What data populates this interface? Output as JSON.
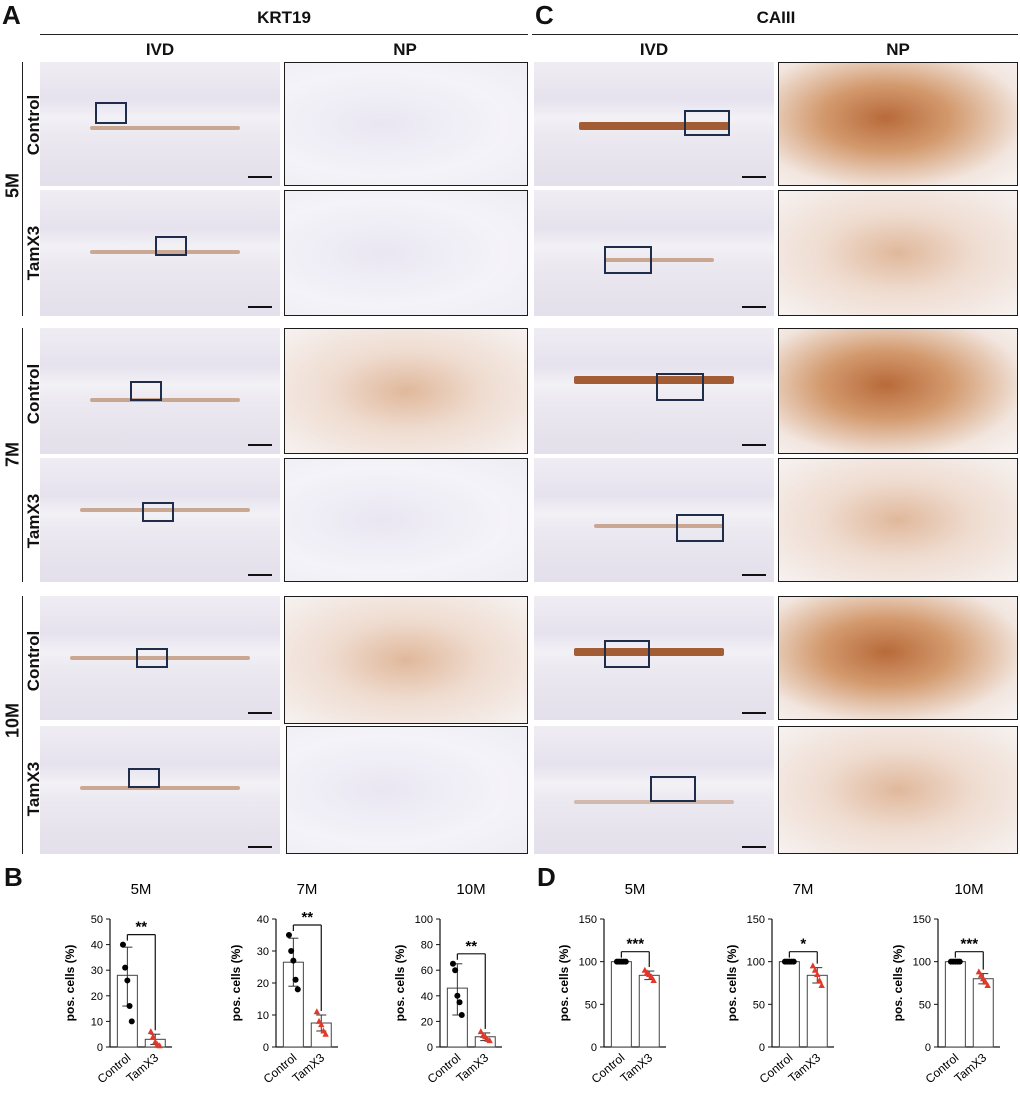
{
  "panels": {
    "A": "A",
    "B": "B",
    "C": "C",
    "D": "D"
  },
  "sections": {
    "left_title": "KRT19",
    "right_title": "CAIII"
  },
  "columns": {
    "ivd": "IVD",
    "np": "NP"
  },
  "rows": {
    "control": "Control",
    "tamx3": "TamX3"
  },
  "ages": [
    "5M",
    "7M",
    "10M"
  ],
  "chart_data": [
    {
      "panel": "B",
      "type": "bar",
      "title": "5M",
      "ylabel": "pos. cells (%)",
      "categories": [
        "Control",
        "TamX3"
      ],
      "ylim": [
        0,
        50
      ],
      "yticks": [
        0,
        10,
        20,
        30,
        40,
        50
      ],
      "means": [
        28,
        3
      ],
      "errors": [
        [
          16,
          39
        ],
        [
          1,
          5
        ]
      ],
      "points": [
        [
          40,
          31,
          26,
          16,
          10
        ],
        [
          6,
          4,
          2,
          1,
          0.5
        ]
      ],
      "significance": "**"
    },
    {
      "panel": "B",
      "type": "bar",
      "title": "7M",
      "ylabel": "pos. cells (%)",
      "categories": [
        "Control",
        "TamX3"
      ],
      "ylim": [
        0,
        40
      ],
      "yticks": [
        0,
        10,
        20,
        30,
        40
      ],
      "means": [
        26.5,
        7.5
      ],
      "errors": [
        [
          19,
          34
        ],
        [
          5,
          10
        ]
      ],
      "points": [
        [
          35,
          30,
          27,
          21,
          18
        ],
        [
          11,
          8,
          7,
          5,
          4
        ]
      ],
      "significance": "**"
    },
    {
      "panel": "B",
      "type": "bar",
      "title": "10M",
      "ylabel": "pos. cells (%)",
      "categories": [
        "Control",
        "TamX3"
      ],
      "ylim": [
        0,
        100
      ],
      "yticks": [
        0,
        20,
        40,
        60,
        80,
        100
      ],
      "means": [
        46,
        8
      ],
      "errors": [
        [
          25,
          65
        ],
        [
          5,
          11
        ]
      ],
      "points": [
        [
          65,
          60,
          40,
          35,
          25
        ],
        [
          12,
          9,
          8,
          6,
          5
        ]
      ],
      "significance": "**"
    },
    {
      "panel": "D",
      "type": "bar",
      "title": "5M",
      "ylabel": "pos. cells (%)",
      "categories": [
        "Control",
        "TamX3"
      ],
      "ylim": [
        0,
        150
      ],
      "yticks": [
        0,
        50,
        100,
        150
      ],
      "means": [
        100,
        84
      ],
      "errors": [
        [
          100,
          100
        ],
        [
          79,
          89
        ]
      ],
      "points": [
        [
          100,
          100,
          100,
          100,
          100
        ],
        [
          90,
          87,
          85,
          82,
          78
        ]
      ],
      "significance": "***"
    },
    {
      "panel": "D",
      "type": "bar",
      "title": "7M",
      "ylabel": "pos. cells (%)",
      "categories": [
        "Control",
        "TamX3"
      ],
      "ylim": [
        0,
        150
      ],
      "yticks": [
        0,
        50,
        100,
        150
      ],
      "means": [
        100,
        84
      ],
      "errors": [
        [
          100,
          100
        ],
        [
          75,
          93
        ]
      ],
      "points": [
        [
          100,
          100,
          100,
          100,
          100
        ],
        [
          95,
          90,
          85,
          78,
          72
        ]
      ],
      "significance": "*"
    },
    {
      "panel": "D",
      "type": "bar",
      "title": "10M",
      "ylabel": "pos. cells (%)",
      "categories": [
        "Control",
        "TamX3"
      ],
      "ylim": [
        0,
        150
      ],
      "yticks": [
        0,
        50,
        100,
        150
      ],
      "means": [
        100,
        80
      ],
      "errors": [
        [
          100,
          100
        ],
        [
          74,
          86
        ]
      ],
      "points": [
        [
          100,
          100,
          100,
          100,
          100
        ],
        [
          88,
          84,
          80,
          76,
          72
        ]
      ],
      "significance": "***"
    }
  ],
  "colors": {
    "control_points": "#000000",
    "tamx3_points": "#e0382b",
    "roi_box": "#1f2d4a",
    "stain": "#b86a3a"
  }
}
